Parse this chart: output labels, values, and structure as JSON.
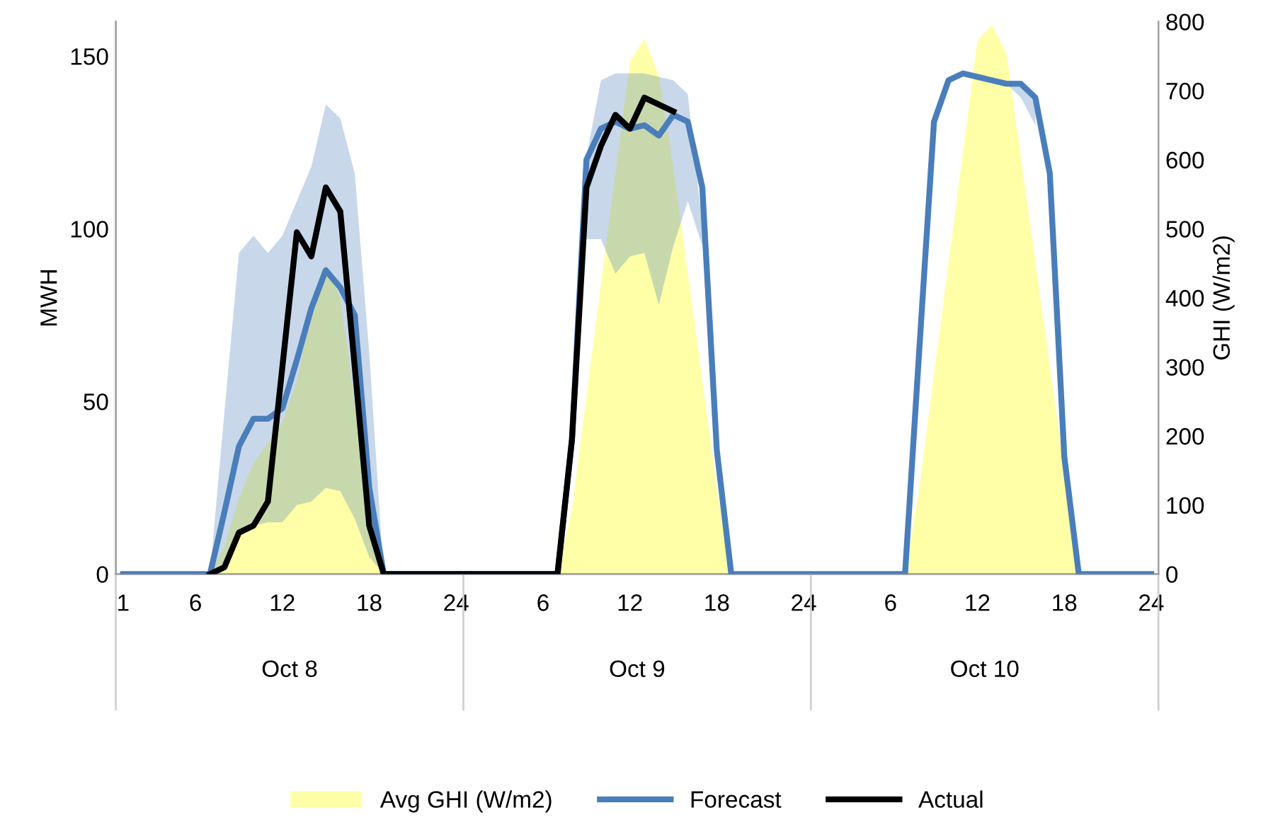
{
  "chart_data": {
    "type": "line",
    "categories": [
      "1",
      null,
      null,
      null,
      null,
      "6",
      null,
      null,
      null,
      null,
      null,
      "12",
      null,
      null,
      null,
      null,
      null,
      "18",
      null,
      null,
      null,
      null,
      null,
      "24",
      null,
      null,
      null,
      null,
      null,
      "6",
      null,
      null,
      null,
      null,
      null,
      "12",
      null,
      null,
      null,
      null,
      null,
      "18",
      null,
      null,
      null,
      null,
      null,
      "24",
      null,
      null,
      null,
      null,
      null,
      "6",
      null,
      null,
      null,
      null,
      null,
      "12",
      null,
      null,
      null,
      null,
      null,
      "18",
      null,
      null,
      null,
      null,
      null,
      "24"
    ],
    "ylabel": "MWH",
    "y2label": "GHI (W/m2)",
    "ylim": [
      0,
      160
    ],
    "yticks": [
      0,
      50,
      100,
      150
    ],
    "y2lim": [
      0,
      800
    ],
    "y2ticks": [
      0,
      100,
      200,
      300,
      400,
      500,
      600,
      700,
      800
    ],
    "annotations": [
      "Oct 8",
      "Oct 9",
      "Oct 10"
    ],
    "legend": "bottom",
    "grid": false,
    "series": [
      {
        "name": "Avg GHI (W/m2)",
        "type": "area",
        "axis": "y2",
        "color": "#ffffa8",
        "values": [
          0,
          0,
          0,
          0,
          0,
          0,
          0,
          40,
          110,
          160,
          190,
          220,
          280,
          380,
          450,
          400,
          250,
          80,
          0,
          0,
          0,
          0,
          0,
          0,
          0,
          0,
          0,
          0,
          0,
          0,
          0,
          94,
          258,
          420,
          580,
          742,
          775,
          722,
          589,
          436,
          280,
          125,
          0,
          0,
          0,
          0,
          0,
          0,
          0,
          0,
          0,
          0,
          0,
          0,
          0,
          127,
          288,
          450,
          611,
          773,
          795,
          755,
          603,
          452,
          301,
          149,
          0,
          0,
          0,
          0,
          0,
          0
        ]
      },
      {
        "name": "Forecast",
        "color": "#4a7ebb",
        "values": [
          0,
          0,
          0,
          0,
          0,
          0,
          0,
          18,
          37,
          45,
          45,
          48,
          62,
          77,
          88,
          83,
          75,
          25,
          0,
          0,
          0,
          0,
          0,
          0,
          0,
          0,
          0,
          0,
          0,
          0,
          0,
          39,
          120,
          129,
          131,
          129,
          130,
          127,
          133,
          131,
          112,
          36,
          0,
          0,
          0,
          0,
          0,
          0,
          0,
          0,
          0,
          0,
          0,
          0,
          0,
          66,
          131,
          143,
          145,
          144,
          143,
          142,
          142,
          138,
          116,
          34,
          0,
          0,
          0,
          0,
          0,
          0
        ],
        "lower": [
          null,
          null,
          null,
          null,
          null,
          null,
          0,
          3,
          12,
          14,
          15,
          15,
          20,
          21,
          25,
          24,
          16,
          5,
          0,
          null,
          null,
          null,
          null,
          null,
          null,
          null,
          null,
          null,
          null,
          null,
          null,
          null,
          97,
          97,
          87,
          92,
          93,
          78,
          95,
          108,
          95,
          null,
          null,
          null,
          null,
          null,
          null,
          null,
          null,
          null,
          null,
          null,
          null,
          null,
          null,
          null,
          null,
          null,
          null,
          null,
          null,
          142,
          138,
          130,
          null,
          null,
          null,
          null,
          null,
          null,
          null,
          null
        ],
        "upper": [
          null,
          null,
          null,
          null,
          null,
          null,
          0,
          47,
          93,
          98,
          93,
          98,
          108,
          118,
          136,
          132,
          116,
          64,
          0,
          null,
          null,
          null,
          null,
          null,
          null,
          null,
          null,
          null,
          null,
          null,
          null,
          null,
          121,
          143,
          145,
          145,
          145,
          144,
          143,
          139,
          101,
          null,
          null,
          null,
          null,
          null,
          null,
          null,
          null,
          null,
          null,
          null,
          null,
          null,
          null,
          null,
          null,
          null,
          null,
          null,
          null,
          142,
          142,
          138,
          null,
          null,
          null,
          null,
          null,
          null,
          null,
          null
        ]
      },
      {
        "name": "Actual",
        "color": "#000000",
        "values": [
          null,
          null,
          null,
          null,
          null,
          null,
          0,
          2,
          12,
          14,
          21,
          60,
          99,
          92,
          112,
          105,
          60,
          14,
          0,
          0,
          0,
          0,
          0,
          0,
          0,
          0,
          0,
          0,
          0,
          0,
          0,
          39,
          112,
          124,
          133,
          129,
          138,
          136,
          134,
          null,
          null,
          null,
          null,
          null,
          null,
          null,
          null,
          null,
          null,
          null,
          null,
          null,
          null,
          null,
          null,
          null,
          null,
          null,
          null,
          null,
          null,
          null,
          null,
          null,
          null,
          null,
          null,
          null,
          null,
          null,
          null,
          null
        ]
      }
    ]
  }
}
